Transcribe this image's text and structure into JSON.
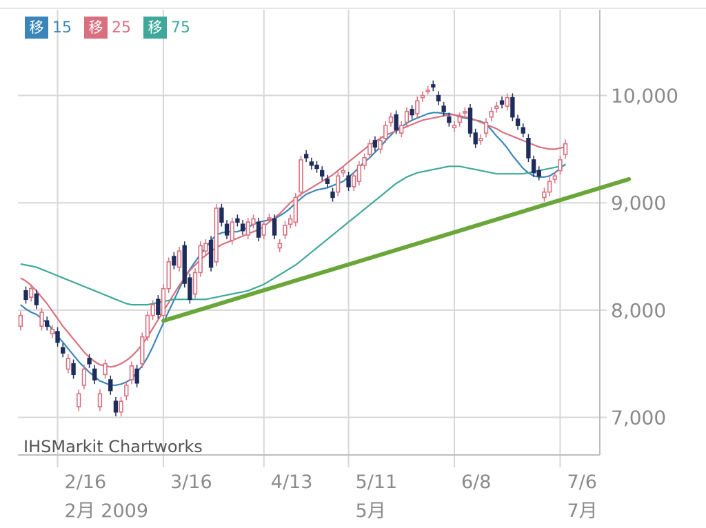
{
  "legend": [
    {
      "badge": "移",
      "period": "15",
      "color": "#3a86b8"
    },
    {
      "badge": "移",
      "period": "25",
      "color": "#d9707f"
    },
    {
      "badge": "移",
      "period": "75",
      "color": "#3fa89a"
    }
  ],
  "watermark": "IHSMarkit Chartworks",
  "colors": {
    "up_candle": "#d9707f",
    "down_candle": "#1f2d5c",
    "trendline": "#6aa63a",
    "grid": "#d7d7d7",
    "axis_text": "#8a8a8a"
  },
  "chart_data": {
    "type": "candlestick",
    "title": "",
    "xlabel": "",
    "ylabel": "",
    "ylim": [
      6650,
      10800
    ],
    "y_ticks": [
      {
        "value": 7000,
        "label": "7,000"
      },
      {
        "value": 8000,
        "label": "8,000"
      },
      {
        "value": 9000,
        "label": "9,000"
      },
      {
        "value": 10000,
        "label": "10,000"
      }
    ],
    "x_ticks": [
      {
        "label": "2/16",
        "sub": "2月 2009",
        "i": 7
      },
      {
        "label": "3/16",
        "sub": "",
        "i": 27
      },
      {
        "label": "4/13",
        "sub": "",
        "i": 46
      },
      {
        "label": "5/11",
        "sub": "5月",
        "i": 62
      },
      {
        "label": "6/8",
        "sub": "",
        "i": 82
      },
      {
        "label": "7/6",
        "sub": "7月",
        "i": 102
      }
    ],
    "sessions": 110,
    "closes": [
      7950,
      8100,
      8200,
      8050,
      7980,
      7850,
      7820,
      7700,
      7600,
      7550,
      7400,
      7220,
      7450,
      7500,
      7350,
      7220,
      7500,
      7250,
      7050,
      7150,
      7300,
      7480,
      7320,
      7750,
      7950,
      8050,
      7960,
      8200,
      8450,
      8420,
      8550,
      8250,
      8100,
      8350,
      8600,
      8620,
      8400,
      8950,
      8820,
      8700,
      8820,
      8820,
      8740,
      8820,
      8850,
      8680,
      8800,
      8860,
      8700,
      8620,
      8790,
      8850,
      9050,
      9400,
      9420,
      9350,
      9320,
      9250,
      9180,
      9050,
      9250,
      9300,
      9150,
      9250,
      9350,
      9420,
      9550,
      9520,
      9580,
      9720,
      9800,
      9680,
      9720,
      9850,
      9820,
      9950,
      10000,
      10050,
      10080,
      9950,
      9850,
      9750,
      9720,
      9800,
      9850,
      9650,
      9550,
      9600,
      9750,
      9850,
      9900,
      9920,
      9980,
      9800,
      9720,
      9650,
      9420,
      9280,
      9250,
      9100,
      9200,
      9250,
      9400,
      9550
    ],
    "opens": [
      7850,
      8180,
      8120,
      8150,
      7850,
      7900,
      7780,
      7800,
      7650,
      7450,
      7500,
      7100,
      7300,
      7550,
      7450,
      7100,
      7400,
      7350,
      7150,
      7050,
      7200,
      7350,
      7450,
      7500,
      7750,
      7950,
      8100,
      7950,
      8200,
      8500,
      8400,
      8600,
      8300,
      8150,
      8350,
      8550,
      8650,
      8450,
      8950,
      8800,
      8650,
      8850,
      8800,
      8700,
      8800,
      8820,
      8700,
      8850,
      8850,
      8580,
      8700,
      8800,
      8820,
      9100,
      9450,
      9380,
      9350,
      9300,
      9220,
      9100,
      9100,
      9280,
      9250,
      9150,
      9200,
      9350,
      9450,
      9580,
      9500,
      9600,
      9750,
      9820,
      9650,
      9750,
      9870,
      9830,
      9980,
      10050,
      10100,
      10000,
      9900,
      9800,
      9700,
      9750,
      9850,
      9880,
      9650,
      9580,
      9650,
      9800,
      9880,
      9950,
      9900,
      9980,
      9780,
      9700,
      9600,
      9400,
      9300,
      9050,
      9100,
      9220,
      9300,
      9450
    ],
    "series": [
      {
        "name": "15",
        "color": "#3a86b8",
        "values": [
          8050,
          8010,
          7980,
          7960,
          7920,
          7880,
          7820,
          7760,
          7700,
          7640,
          7580,
          7520,
          7470,
          7420,
          7380,
          7340,
          7320,
          7300,
          7300,
          7310,
          7330,
          7360,
          7420,
          7480,
          7560,
          7660,
          7770,
          7880,
          7990,
          8090,
          8200,
          8300,
          8380,
          8450,
          8520,
          8580,
          8650,
          8700,
          8720,
          8730,
          8730,
          8730,
          8750,
          8770,
          8800,
          8820,
          8830,
          8840,
          8850,
          8880,
          8910,
          8950,
          9000,
          9040,
          9080,
          9100,
          9120,
          9130,
          9140,
          9160,
          9180,
          9200,
          9240,
          9280,
          9330,
          9380,
          9420,
          9470,
          9520,
          9580,
          9630,
          9680,
          9710,
          9740,
          9770,
          9790,
          9810,
          9830,
          9840,
          9840,
          9830,
          9830,
          9820,
          9800,
          9790,
          9780,
          9770,
          9760,
          9730,
          9680,
          9620,
          9570,
          9510,
          9440,
          9380,
          9320,
          9280,
          9250,
          9240,
          9240,
          9250,
          9280,
          9320,
          9360
        ]
      },
      {
        "name": "25",
        "color": "#d9707f",
        "values": [
          8300,
          8270,
          8230,
          8180,
          8120,
          8060,
          7990,
          7920,
          7850,
          7790,
          7730,
          7670,
          7610,
          7560,
          7520,
          7490,
          7480,
          7470,
          7480,
          7500,
          7530,
          7570,
          7620,
          7680,
          7750,
          7830,
          7910,
          7990,
          8070,
          8150,
          8230,
          8300,
          8370,
          8420,
          8470,
          8510,
          8550,
          8580,
          8610,
          8630,
          8650,
          8670,
          8690,
          8710,
          8730,
          8750,
          8780,
          8820,
          8860,
          8900,
          8950,
          9000,
          9040,
          9080,
          9110,
          9140,
          9170,
          9200,
          9230,
          9260,
          9300,
          9340,
          9380,
          9420,
          9460,
          9500,
          9540,
          9570,
          9600,
          9630,
          9650,
          9670,
          9690,
          9710,
          9730,
          9750,
          9770,
          9780,
          9790,
          9800,
          9810,
          9820,
          9820,
          9810,
          9800,
          9790,
          9770,
          9750,
          9730,
          9710,
          9690,
          9660,
          9640,
          9620,
          9600,
          9580,
          9560,
          9540,
          9520,
          9510,
          9500,
          9500,
          9510,
          9520
        ]
      },
      {
        "name": "75",
        "color": "#3fa89a",
        "values": [
          8430,
          8420,
          8410,
          8400,
          8380,
          8360,
          8340,
          8320,
          8300,
          8280,
          8260,
          8240,
          8220,
          8200,
          8180,
          8160,
          8140,
          8120,
          8100,
          8080,
          8060,
          8050,
          8050,
          8050,
          8050,
          8060,
          8070,
          8080,
          8090,
          8100,
          8100,
          8100,
          8100,
          8100,
          8100,
          8100,
          8110,
          8120,
          8130,
          8140,
          8150,
          8160,
          8170,
          8180,
          8200,
          8220,
          8240,
          8270,
          8300,
          8330,
          8360,
          8390,
          8420,
          8460,
          8500,
          8540,
          8580,
          8620,
          8660,
          8700,
          8740,
          8780,
          8820,
          8860,
          8900,
          8940,
          8980,
          9020,
          9060,
          9100,
          9140,
          9180,
          9210,
          9240,
          9260,
          9280,
          9290,
          9300,
          9310,
          9320,
          9330,
          9340,
          9340,
          9340,
          9330,
          9320,
          9310,
          9300,
          9290,
          9280,
          9270,
          9270,
          9270,
          9270,
          9270,
          9270,
          9280,
          9290,
          9300,
          9310,
          9320,
          9330,
          9340,
          9350
        ]
      }
    ],
    "trendline": {
      "color": "#6aa63a",
      "from": {
        "i": 27,
        "value": 7900
      },
      "to": {
        "i": 115,
        "value": 9220
      }
    },
    "grid": true,
    "legend_position": "top-left"
  }
}
